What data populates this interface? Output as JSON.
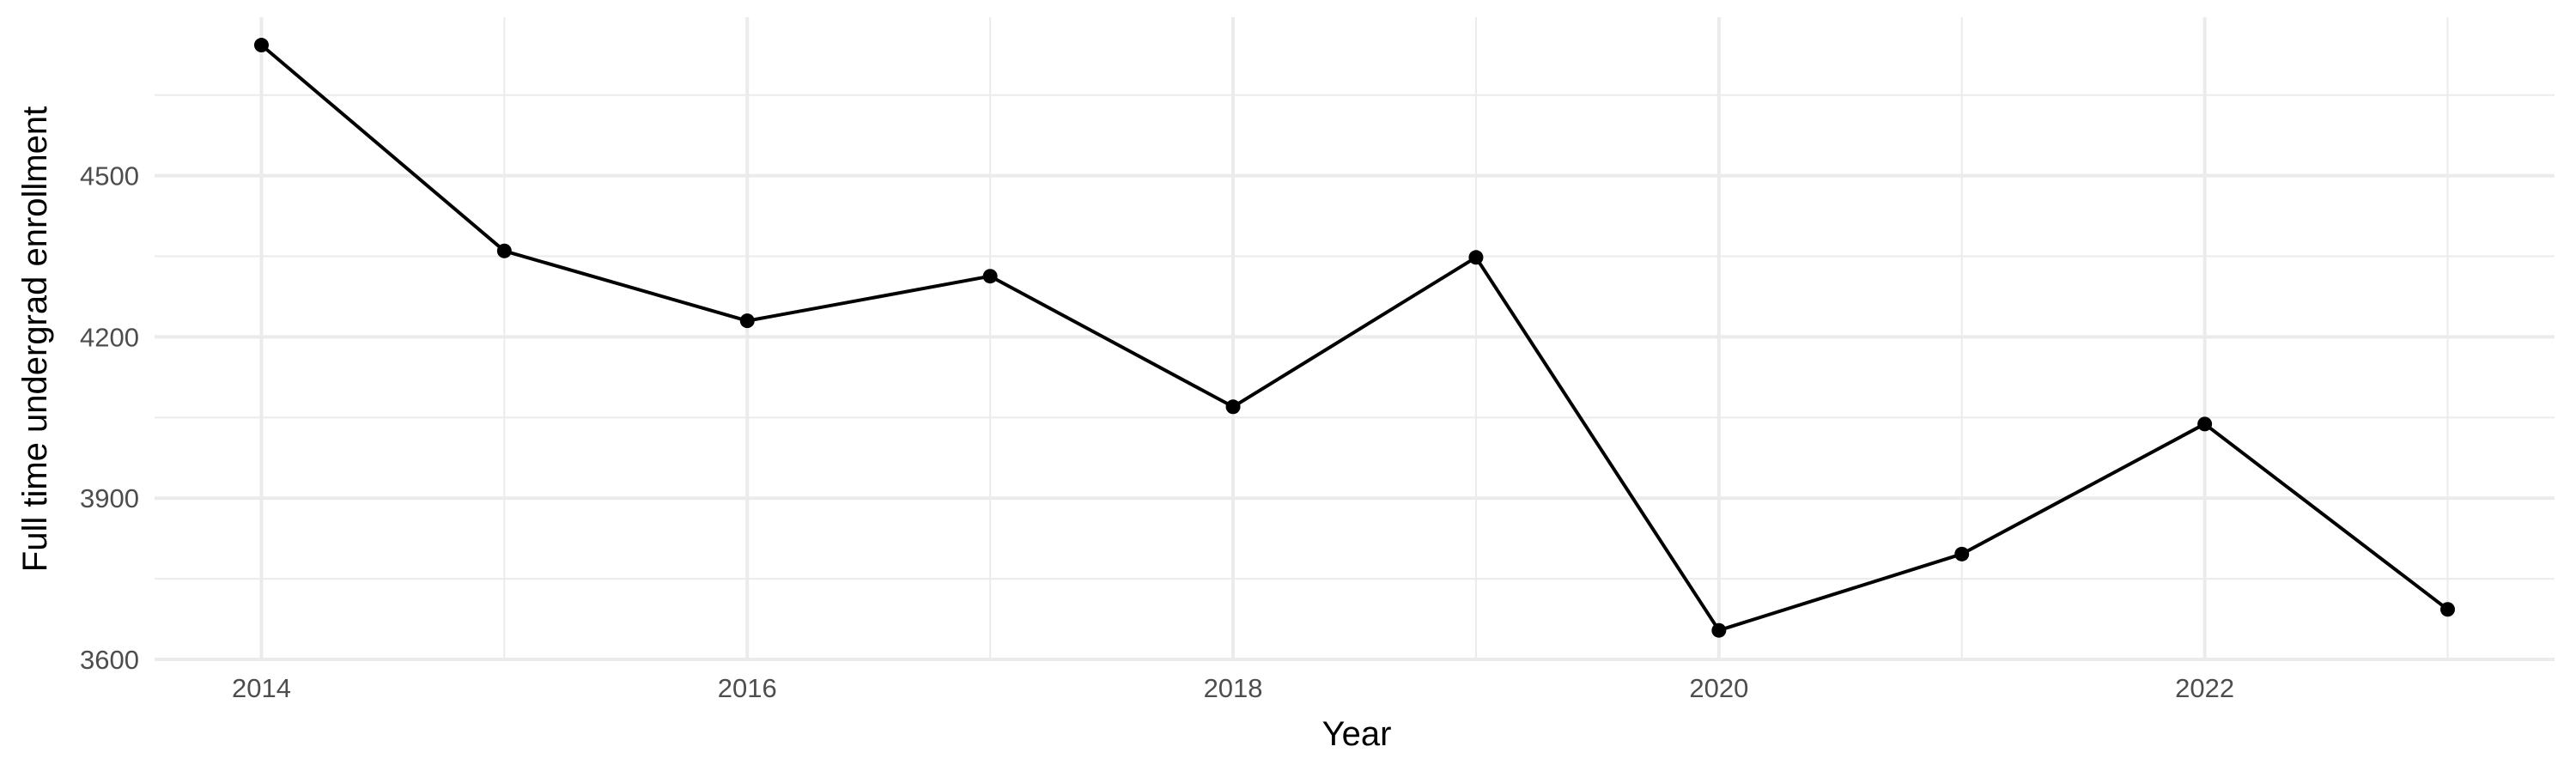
{
  "chart_data": {
    "type": "line",
    "xlabel": "Year",
    "ylabel": "Full time undergrad enrollment",
    "x_ticks": [
      "2014",
      "2016",
      "2018",
      "2020",
      "2022"
    ],
    "y_ticks": [
      "3600",
      "3900",
      "4200",
      "4500"
    ],
    "xlim": [
      2013.56,
      2023.44
    ],
    "ylim": [
      3600,
      4795
    ],
    "grid": true,
    "legend": "none",
    "series": [
      {
        "x": [
          2014,
          2015,
          2016,
          2017,
          2018,
          2019,
          2020,
          2021,
          2022,
          2023
        ],
        "values": [
          4743,
          4360,
          4230,
          4313,
          4070,
          4348,
          3654,
          3796,
          4038,
          3693
        ],
        "color": "#000000"
      }
    ],
    "colors": {
      "grid": "#ebebeb",
      "line": "#000000",
      "tick_text": "#4d4d4d",
      "title_text": "#000000"
    }
  }
}
